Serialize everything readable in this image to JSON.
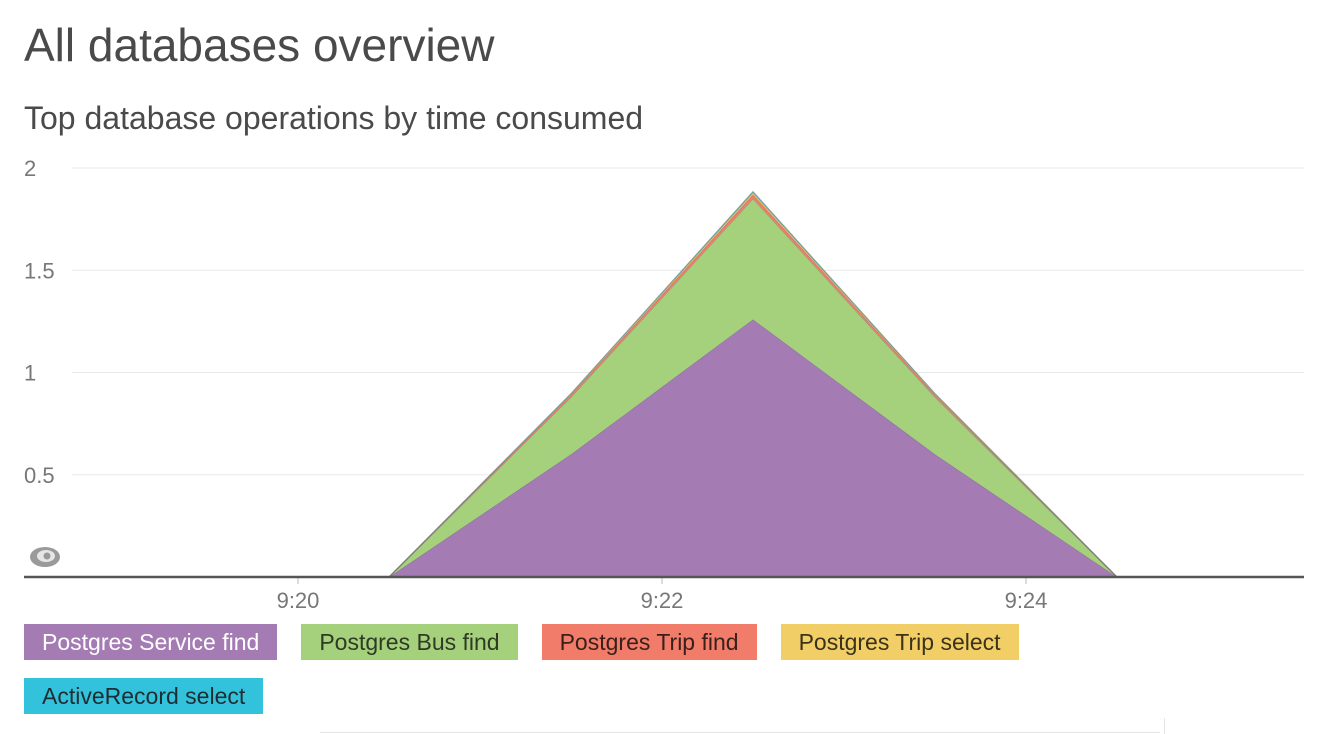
{
  "page": {
    "title": "All databases overview"
  },
  "chart_data": {
    "type": "area",
    "stacked": true,
    "title": "Top database operations by time consumed",
    "xlabel": "",
    "ylabel": "",
    "ylim": [
      0,
      2
    ],
    "yticks": [
      0.5,
      1,
      1.5,
      2
    ],
    "ytick_labels": [
      "0.5",
      "1",
      "1.5",
      "2"
    ],
    "x": [
      "9:18:30",
      "9:19:30",
      "9:20:30",
      "9:21:30",
      "9:22:30",
      "9:23:30",
      "9:24:30",
      "9:25:30"
    ],
    "xticks": [
      "9:20",
      "9:22",
      "9:24"
    ],
    "grid": true,
    "legend_position": "bottom",
    "series": [
      {
        "name": "Postgres Service find",
        "color": "#a57bb4",
        "text_color": "#ffffff",
        "values": [
          0,
          0,
          0,
          0.6,
          1.26,
          0.6,
          0,
          0
        ]
      },
      {
        "name": "Postgres Bus find",
        "color": "#a6d17c",
        "text_color": "#2f3a25",
        "values": [
          0,
          0,
          0,
          0.28,
          0.59,
          0.28,
          0,
          0
        ]
      },
      {
        "name": "Postgres Trip find",
        "color": "#f07c69",
        "text_color": "#3a1f1a",
        "values": [
          0,
          0,
          0,
          0.01,
          0.02,
          0.01,
          0,
          0
        ]
      },
      {
        "name": "Postgres Trip select",
        "color": "#f2cf66",
        "text_color": "#3a321a",
        "values": [
          0,
          0,
          0,
          0.005,
          0.01,
          0.005,
          0,
          0
        ]
      },
      {
        "name": "ActiveRecord select",
        "color": "#33c2dc",
        "text_color": "#1d2e33",
        "values": [
          0,
          0,
          0,
          0.002,
          0.005,
          0.002,
          0,
          0
        ]
      }
    ]
  },
  "icons": {
    "baseline_marker": "eye-icon"
  }
}
